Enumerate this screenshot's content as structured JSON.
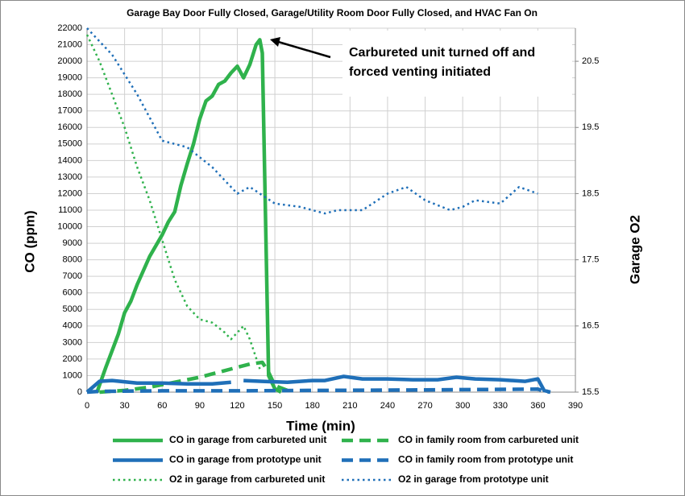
{
  "chart_data": {
    "type": "line",
    "title": "Garage Bay Door Fully Closed, Garage/Utility Room Door Fully Closed, and HVAC Fan On",
    "x_label": "Time (min)",
    "y_label": "CO (ppm)",
    "y2_label": "Garage O2",
    "annotation": [
      "Carbureted unit turned off and",
      "forced venting initiated"
    ],
    "xlim": [
      0,
      390
    ],
    "xticks": [
      0,
      30,
      60,
      90,
      120,
      150,
      180,
      210,
      240,
      270,
      300,
      330,
      360,
      390
    ],
    "ylim": [
      0,
      22000
    ],
    "yticks": [
      0,
      1000,
      2000,
      3000,
      4000,
      5000,
      6000,
      7000,
      8000,
      9000,
      10000,
      11000,
      12000,
      13000,
      14000,
      15000,
      16000,
      17000,
      18000,
      19000,
      20000,
      21000,
      22000
    ],
    "y2lim": [
      15.5,
      21.0
    ],
    "y2ticks": [
      15.5,
      16.5,
      17.5,
      18.5,
      19.5,
      20.5
    ],
    "grid": true,
    "series": [
      {
        "name": "CO in garage from carbureted unit",
        "color": "#2fb24c",
        "style": "solid",
        "x": [
          8,
          15,
          20,
          25,
          30,
          35,
          40,
          50,
          60,
          65,
          70,
          75,
          80,
          85,
          90,
          95,
          100,
          105,
          110,
          115,
          120,
          125,
          130,
          135,
          138,
          140,
          145,
          150,
          155
        ],
        "values": [
          0,
          1500,
          2500,
          3500,
          4800,
          5500,
          6500,
          8200,
          9500,
          10300,
          10900,
          12500,
          13800,
          15000,
          16500,
          17600,
          17900,
          18600,
          18800,
          19300,
          19700,
          19000,
          19800,
          21000,
          21300,
          20500,
          1000,
          200,
          0
        ]
      },
      {
        "name": "CO in family room from carbureted unit",
        "color": "#2fb24c",
        "style": "dashed",
        "x": [
          10,
          30,
          50,
          70,
          90,
          110,
          130,
          140,
          145,
          150,
          160
        ],
        "values": [
          0,
          100,
          300,
          600,
          900,
          1300,
          1700,
          1800,
          1200,
          400,
          100
        ]
      },
      {
        "name": "CO in garage from prototype unit",
        "color": "#1f6fb8",
        "style": "solid",
        "x": [
          0,
          10,
          20,
          40,
          60,
          80,
          100,
          115,
          120,
          125,
          140,
          160,
          180,
          190,
          205,
          220,
          240,
          260,
          280,
          295,
          310,
          330,
          350,
          360,
          365,
          370
        ],
        "values": [
          0,
          650,
          700,
          550,
          550,
          500,
          500,
          600,
          null,
          700,
          650,
          600,
          700,
          700,
          950,
          800,
          800,
          750,
          750,
          900,
          800,
          750,
          650,
          800,
          100,
          0
        ]
      },
      {
        "name": "CO in family room from prototype unit",
        "color": "#1f6fb8",
        "style": "dashed",
        "x": [
          0,
          10,
          60,
          120,
          180,
          240,
          300,
          360,
          365,
          370
        ],
        "values": [
          0,
          50,
          80,
          80,
          100,
          120,
          150,
          180,
          50,
          0
        ]
      },
      {
        "name": "O2 in garage from carbureted unit",
        "color": "#2fb24c",
        "style": "dotted",
        "axis": "y2",
        "x": [
          0,
          10,
          20,
          30,
          40,
          50,
          60,
          70,
          80,
          90,
          100,
          110,
          115,
          120,
          125,
          130,
          138
        ],
        "values": [
          20.9,
          20.5,
          20.0,
          19.5,
          18.9,
          18.4,
          17.8,
          17.2,
          16.8,
          16.6,
          16.55,
          16.4,
          16.3,
          16.4,
          16.5,
          16.3,
          15.85
        ]
      },
      {
        "name": "O2 in garage from prototype unit",
        "color": "#1f6fb8",
        "style": "dotted",
        "axis": "y2",
        "x": [
          0,
          20,
          40,
          60,
          80,
          100,
          120,
          130,
          150,
          170,
          190,
          200,
          220,
          240,
          255,
          270,
          290,
          300,
          310,
          330,
          345,
          360
        ],
        "values": [
          21.0,
          20.6,
          20.0,
          19.3,
          19.2,
          18.9,
          18.5,
          18.6,
          18.35,
          18.3,
          18.2,
          18.25,
          18.25,
          18.5,
          18.6,
          18.4,
          18.25,
          18.3,
          18.4,
          18.35,
          18.6,
          18.5
        ]
      }
    ]
  }
}
